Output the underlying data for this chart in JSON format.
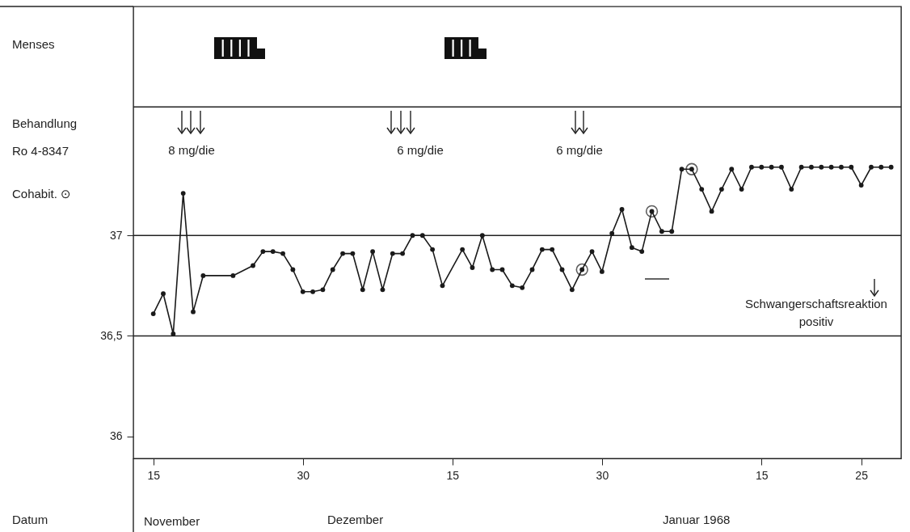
{
  "chart_data": {
    "type": "line",
    "x": [
      "1967-11-15",
      "1967-11-16",
      "1967-11-17",
      "1967-11-18",
      "1967-11-19",
      "1967-11-20",
      "1967-11-23",
      "1967-11-25",
      "1967-11-26",
      "1967-11-27",
      "1967-11-28",
      "1967-11-29",
      "1967-11-30",
      "1967-12-01",
      "1967-12-02",
      "1967-12-03",
      "1967-12-04",
      "1967-12-05",
      "1967-12-06",
      "1967-12-07",
      "1967-12-08",
      "1967-12-09",
      "1967-12-10",
      "1967-12-11",
      "1967-12-12",
      "1967-12-13",
      "1967-12-14",
      "1967-12-16",
      "1967-12-17",
      "1967-12-18",
      "1967-12-19",
      "1967-12-20",
      "1967-12-21",
      "1967-12-22",
      "1967-12-23",
      "1967-12-24",
      "1967-12-25",
      "1967-12-26",
      "1967-12-27",
      "1967-12-28",
      "1967-12-29",
      "1967-12-30",
      "1967-12-31",
      "1968-01-01",
      "1968-01-02",
      "1968-01-03",
      "1968-01-04",
      "1968-01-05",
      "1968-01-06",
      "1968-01-07",
      "1968-01-08",
      "1968-01-09",
      "1968-01-10",
      "1968-01-11",
      "1968-01-12",
      "1968-01-13",
      "1968-01-14",
      "1968-01-15",
      "1968-01-16",
      "1968-01-17",
      "1968-01-18",
      "1968-01-19",
      "1968-01-20",
      "1968-01-21",
      "1968-01-22",
      "1968-01-23",
      "1968-01-24",
      "1968-01-25",
      "1968-01-26",
      "1968-01-27",
      "1968-01-28"
    ],
    "series": [
      {
        "color": "#1a1a1a",
        "values": [
          36.61,
          36.71,
          36.51,
          37.21,
          36.62,
          36.8,
          36.8,
          36.85,
          36.92,
          36.92,
          36.91,
          36.83,
          36.72,
          36.72,
          36.73,
          36.83,
          36.91,
          36.91,
          36.73,
          36.92,
          36.73,
          36.91,
          36.91,
          37.0,
          37.0,
          36.93,
          36.75,
          36.93,
          36.84,
          37.0,
          36.83,
          36.83,
          36.75,
          36.74,
          36.83,
          36.93,
          36.93,
          36.83,
          36.73,
          36.83,
          36.92,
          36.82,
          37.01,
          37.13,
          36.94,
          36.92,
          37.12,
          37.02,
          37.02,
          37.33,
          37.33,
          37.23,
          37.12,
          37.23,
          37.33,
          37.23,
          37.34,
          37.34,
          37.34,
          37.34,
          37.23,
          37.34,
          37.34,
          37.34,
          37.34,
          37.34,
          37.34,
          37.25,
          37.34,
          37.34,
          37.34
        ]
      },
      {
        "type": "scatter",
        "color": "#1a1a1a",
        "x": [
          "1967-12-28",
          "1968-01-04",
          "1968-01-08"
        ],
        "values": [
          36.83,
          37.12,
          37.33
        ]
      }
    ],
    "xlim": [
      "1967-11-13",
      "1968-01-29"
    ],
    "xticks": [
      {
        "value": "1967-11-15",
        "label": "15"
      },
      {
        "value": "1967-11-30",
        "label": "30"
      },
      {
        "value": "1967-12-15",
        "label": "15"
      },
      {
        "value": "1967-12-30",
        "label": "30"
      },
      {
        "value": "1968-01-15",
        "label": "15"
      },
      {
        "value": "1968-01-25",
        "label": "25"
      }
    ],
    "ylim": [
      35.89,
      38.14
    ],
    "yticks": [
      36,
      {
        "value": 36.5,
        "label": "36,5"
      },
      37
    ],
    "ref_lines": [
      {
        "axis": "y",
        "value": 36.5
      },
      {
        "axis": "y",
        "value": 37
      },
      {
        "axis": "y",
        "value": 37.64
      }
    ],
    "marker": "circle",
    "annotations": [
      "Menses",
      "Behandlung",
      "Ro 4-8347",
      "Cohabit. ⊙",
      "8 mg/die",
      "6 mg/die",
      "6 mg/die",
      "Schwangerschaftsreaktion\npositiv",
      "Datum",
      "November",
      "Dezember",
      "Januar 1968"
    ]
  }
}
